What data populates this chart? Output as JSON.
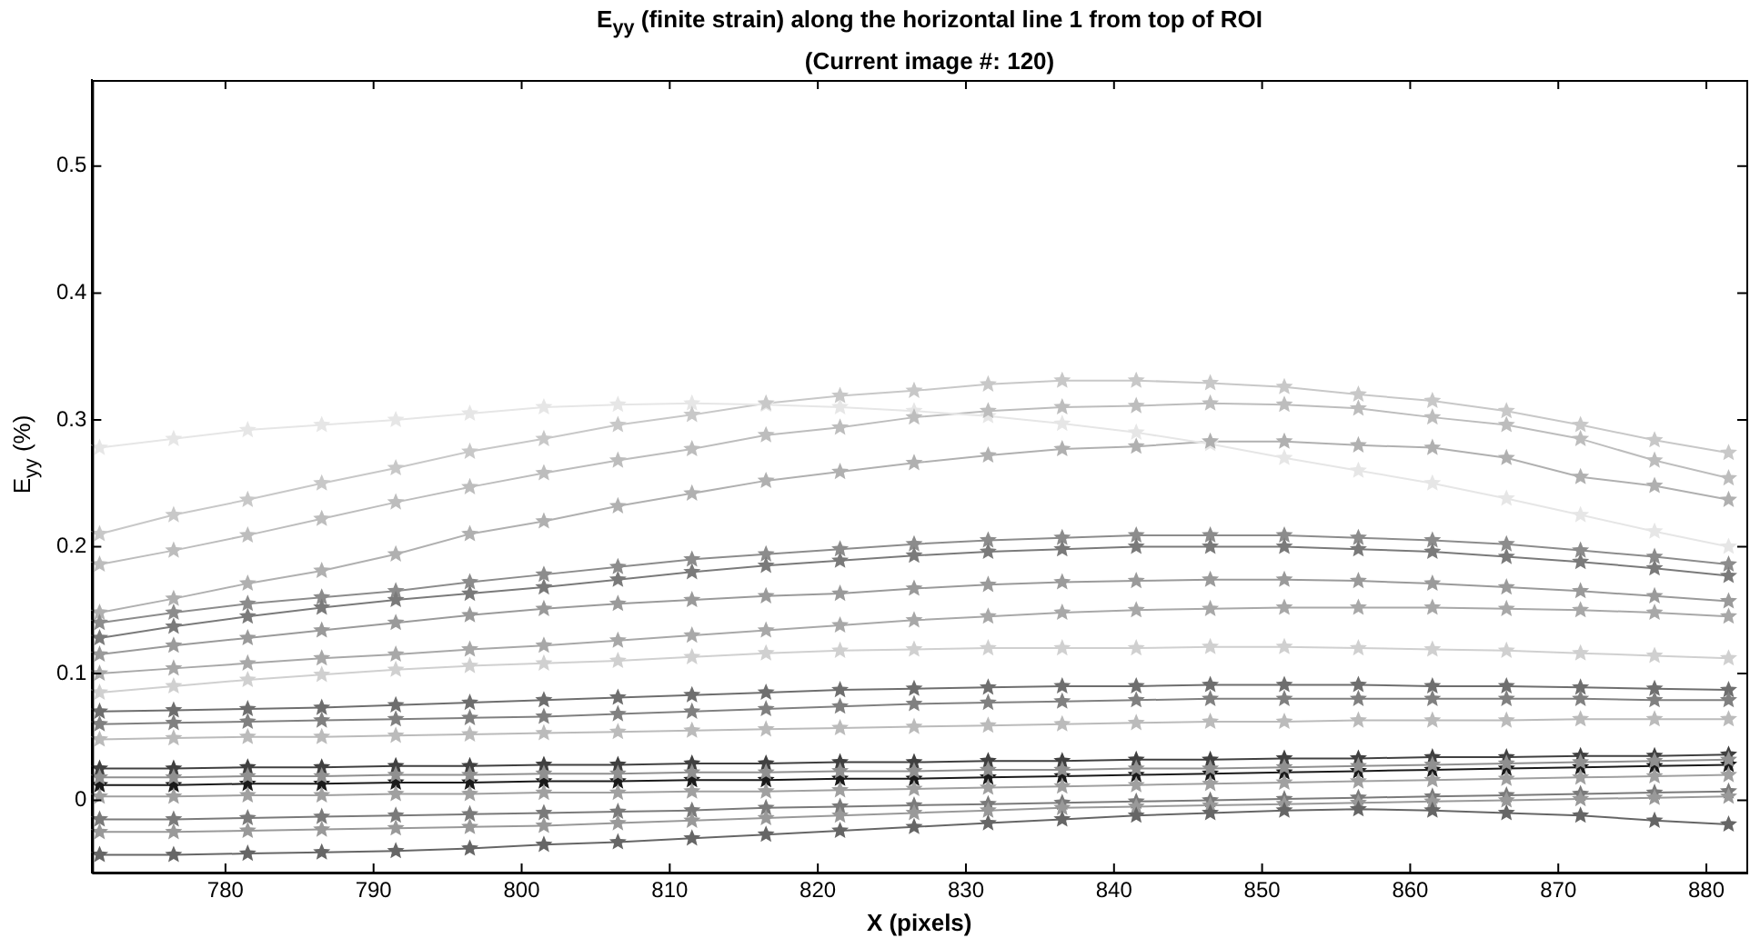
{
  "chart_data": {
    "type": "line",
    "title": "E$_{yy}$ (finite strain) along the horizontal line 1 from top of ROI",
    "subtitle": "(Current image #: 120)",
    "xlabel": "X (pixels)",
    "ylabel": "E$_{yy}$ (%)",
    "x": [
      771.5,
      776.5,
      781.5,
      786.5,
      791.5,
      796.5,
      801.5,
      806.5,
      811.5,
      816.5,
      821.5,
      826.5,
      831.5,
      836.5,
      841.5,
      846.5,
      851.5,
      856.5,
      861.5,
      866.5,
      871.5,
      876.5,
      881.5
    ],
    "xlim": [
      771,
      882.7
    ],
    "xticks": [
      780,
      790,
      800,
      810,
      820,
      830,
      840,
      850,
      860,
      870,
      880
    ],
    "ylim": [
      -0.057,
      0.568
    ],
    "yticks": [
      0,
      0.1,
      0.2,
      0.3,
      0.4,
      0.5
    ],
    "grid": false,
    "legend": false,
    "marker": "star",
    "line_style": "solid",
    "series": [
      {
        "color": "#e6e6e6",
        "values": [
          0.278,
          0.285,
          0.292,
          0.296,
          0.3,
          0.305,
          0.31,
          0.312,
          0.313,
          0.312,
          0.31,
          0.307,
          0.303,
          0.297,
          0.29,
          0.281,
          0.27,
          0.26,
          0.25,
          0.238,
          0.225,
          0.212,
          0.2
        ]
      },
      {
        "color": "#c8c8c8",
        "values": [
          0.21,
          0.225,
          0.237,
          0.25,
          0.262,
          0.275,
          0.285,
          0.296,
          0.304,
          0.313,
          0.319,
          0.323,
          0.328,
          0.331,
          0.331,
          0.329,
          0.326,
          0.32,
          0.315,
          0.307,
          0.296,
          0.284,
          0.274
        ]
      },
      {
        "color": "#bdbdbd",
        "values": [
          0.186,
          0.197,
          0.209,
          0.222,
          0.235,
          0.247,
          0.258,
          0.268,
          0.277,
          0.288,
          0.294,
          0.302,
          0.307,
          0.31,
          0.311,
          0.313,
          0.312,
          0.309,
          0.302,
          0.296,
          0.285,
          0.268,
          0.254
        ]
      },
      {
        "color": "#b0b0b0",
        "values": [
          0.148,
          0.159,
          0.171,
          0.181,
          0.194,
          0.21,
          0.22,
          0.232,
          0.242,
          0.252,
          0.259,
          0.266,
          0.272,
          0.277,
          0.279,
          0.283,
          0.283,
          0.28,
          0.278,
          0.27,
          0.255,
          0.248,
          0.237
        ]
      },
      {
        "color": "#8c8c8c",
        "values": [
          0.14,
          0.148,
          0.155,
          0.16,
          0.165,
          0.172,
          0.178,
          0.184,
          0.19,
          0.194,
          0.198,
          0.202,
          0.205,
          0.207,
          0.209,
          0.209,
          0.209,
          0.207,
          0.205,
          0.202,
          0.197,
          0.192,
          0.186
        ]
      },
      {
        "color": "#7a7a7a",
        "values": [
          0.128,
          0.137,
          0.145,
          0.152,
          0.158,
          0.163,
          0.168,
          0.174,
          0.18,
          0.185,
          0.189,
          0.193,
          0.196,
          0.198,
          0.2,
          0.2,
          0.2,
          0.198,
          0.196,
          0.192,
          0.188,
          0.183,
          0.177
        ]
      },
      {
        "color": "#9a9a9a",
        "values": [
          0.115,
          0.122,
          0.128,
          0.134,
          0.14,
          0.146,
          0.151,
          0.155,
          0.158,
          0.161,
          0.163,
          0.167,
          0.17,
          0.172,
          0.173,
          0.174,
          0.174,
          0.173,
          0.171,
          0.168,
          0.165,
          0.161,
          0.157
        ]
      },
      {
        "color": "#a8a8a8",
        "values": [
          0.1,
          0.104,
          0.108,
          0.112,
          0.115,
          0.119,
          0.122,
          0.126,
          0.13,
          0.134,
          0.138,
          0.142,
          0.145,
          0.148,
          0.15,
          0.151,
          0.152,
          0.152,
          0.152,
          0.151,
          0.15,
          0.148,
          0.145
        ]
      },
      {
        "color": "#d0d0d0",
        "values": [
          0.085,
          0.09,
          0.095,
          0.099,
          0.103,
          0.106,
          0.108,
          0.11,
          0.113,
          0.116,
          0.118,
          0.119,
          0.12,
          0.12,
          0.12,
          0.121,
          0.121,
          0.12,
          0.119,
          0.118,
          0.116,
          0.114,
          0.112
        ]
      },
      {
        "color": "#6e6e6e",
        "values": [
          0.07,
          0.071,
          0.072,
          0.073,
          0.075,
          0.077,
          0.079,
          0.081,
          0.083,
          0.085,
          0.087,
          0.088,
          0.089,
          0.09,
          0.09,
          0.091,
          0.091,
          0.091,
          0.09,
          0.09,
          0.089,
          0.088,
          0.087
        ]
      },
      {
        "color": "#808080",
        "values": [
          0.06,
          0.061,
          0.062,
          0.063,
          0.064,
          0.065,
          0.066,
          0.068,
          0.07,
          0.072,
          0.074,
          0.076,
          0.077,
          0.078,
          0.079,
          0.08,
          0.08,
          0.08,
          0.08,
          0.08,
          0.08,
          0.079,
          0.079
        ]
      },
      {
        "color": "#bbbbbb",
        "values": [
          0.048,
          0.049,
          0.05,
          0.05,
          0.051,
          0.052,
          0.053,
          0.054,
          0.055,
          0.056,
          0.057,
          0.058,
          0.059,
          0.06,
          0.061,
          0.062,
          0.062,
          0.063,
          0.063,
          0.063,
          0.064,
          0.064,
          0.064
        ]
      },
      {
        "color": "#404040",
        "values": [
          0.025,
          0.025,
          0.026,
          0.026,
          0.027,
          0.027,
          0.028,
          0.028,
          0.029,
          0.029,
          0.03,
          0.03,
          0.031,
          0.031,
          0.032,
          0.032,
          0.033,
          0.033,
          0.034,
          0.034,
          0.035,
          0.035,
          0.036
        ]
      },
      {
        "color": "#1a1a1a",
        "values": [
          0.012,
          0.012,
          0.013,
          0.013,
          0.014,
          0.014,
          0.015,
          0.015,
          0.016,
          0.016,
          0.017,
          0.017,
          0.018,
          0.019,
          0.02,
          0.021,
          0.022,
          0.023,
          0.024,
          0.025,
          0.026,
          0.027,
          0.028
        ]
      },
      {
        "color": "#909090",
        "values": [
          0.018,
          0.018,
          0.019,
          0.019,
          0.02,
          0.02,
          0.021,
          0.021,
          0.022,
          0.022,
          0.023,
          0.023,
          0.024,
          0.024,
          0.025,
          0.025,
          0.026,
          0.027,
          0.028,
          0.029,
          0.03,
          0.031,
          0.032
        ]
      },
      {
        "color": "#a0a0a0",
        "values": [
          0.003,
          0.003,
          0.004,
          0.004,
          0.005,
          0.005,
          0.006,
          0.006,
          0.007,
          0.007,
          0.008,
          0.009,
          0.01,
          0.011,
          0.012,
          0.013,
          0.014,
          0.015,
          0.016,
          0.017,
          0.018,
          0.019,
          0.02
        ]
      },
      {
        "color": "#7a7a7a",
        "values": [
          -0.015,
          -0.015,
          -0.014,
          -0.013,
          -0.012,
          -0.011,
          -0.01,
          -0.009,
          -0.008,
          -0.006,
          -0.005,
          -0.004,
          -0.003,
          -0.002,
          -0.001,
          0.0,
          0.001,
          0.002,
          0.003,
          0.004,
          0.005,
          0.006,
          0.007
        ]
      },
      {
        "color": "#999999",
        "values": [
          -0.025,
          -0.025,
          -0.024,
          -0.023,
          -0.022,
          -0.021,
          -0.02,
          -0.018,
          -0.016,
          -0.014,
          -0.012,
          -0.01,
          -0.008,
          -0.006,
          -0.005,
          -0.004,
          -0.003,
          -0.002,
          -0.001,
          0.0,
          0.001,
          0.002,
          0.003
        ]
      },
      {
        "color": "#666666",
        "values": [
          -0.043,
          -0.043,
          -0.042,
          -0.041,
          -0.04,
          -0.038,
          -0.035,
          -0.033,
          -0.03,
          -0.027,
          -0.024,
          -0.021,
          -0.018,
          -0.015,
          -0.012,
          -0.01,
          -0.008,
          -0.007,
          -0.008,
          -0.01,
          -0.012,
          -0.016,
          -0.019
        ]
      }
    ]
  }
}
